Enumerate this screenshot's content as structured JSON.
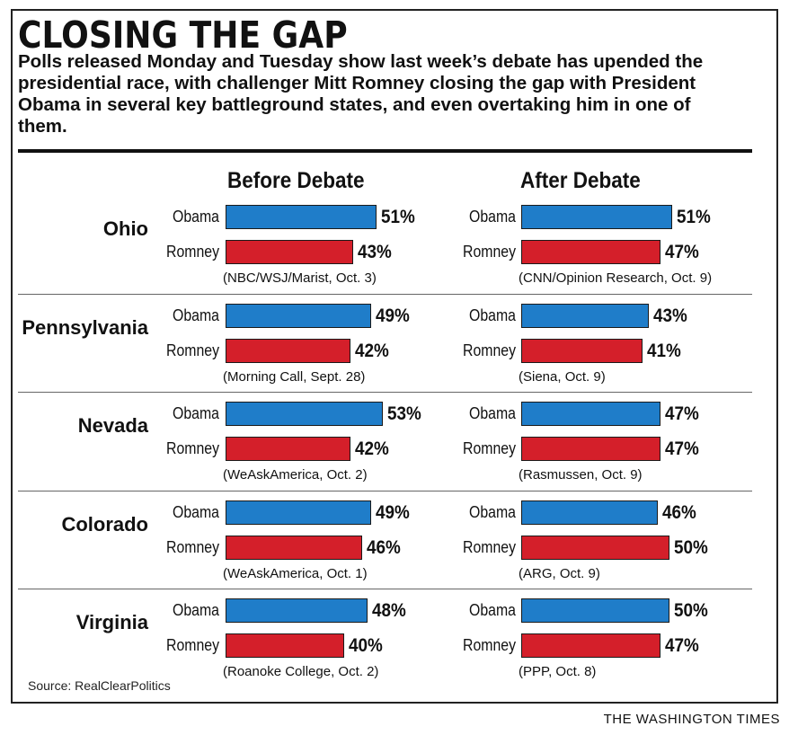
{
  "title": "CLOSING THE GAP",
  "subtitle": "Polls released Monday and Tuesday show last week’s debate has upended the presidential race, with challenger Mitt Romney closing the gap with President Obama in several key battleground states, and even overtaking him in one of them.",
  "source": "Source: RealClearPolitics",
  "credit": "THE WASHINGTON TIMES",
  "colors": {
    "obama": "#1f7dc9",
    "romney": "#d41f2a"
  },
  "chart_data": {
    "type": "bar",
    "orientation": "horizontal",
    "panels": [
      "Before Debate",
      "After Debate"
    ],
    "candidates": [
      "Obama",
      "Romney"
    ],
    "states": [
      {
        "name": "Ohio",
        "before": {
          "obama": 51,
          "romney": 43,
          "poll": "(NBC/WSJ/Marist, Oct. 3)"
        },
        "after": {
          "obama": 51,
          "romney": 47,
          "poll": "(CNN/Opinion Research, Oct. 9)"
        }
      },
      {
        "name": "Pennsylvania",
        "before": {
          "obama": 49,
          "romney": 42,
          "poll": "(Morning Call, Sept. 28)"
        },
        "after": {
          "obama": 43,
          "romney": 41,
          "poll": "(Siena, Oct. 9)"
        }
      },
      {
        "name": "Nevada",
        "before": {
          "obama": 53,
          "romney": 42,
          "poll": "(WeAskAmerica, Oct. 2)"
        },
        "after": {
          "obama": 47,
          "romney": 47,
          "poll": "(Rasmussen, Oct. 9)"
        }
      },
      {
        "name": "Colorado",
        "before": {
          "obama": 49,
          "romney": 46,
          "poll": "(WeAskAmerica, Oct. 1)"
        },
        "after": {
          "obama": 46,
          "romney": 50,
          "poll": "(ARG, Oct. 9)"
        }
      },
      {
        "name": "Virginia",
        "before": {
          "obama": 48,
          "romney": 40,
          "poll": "(Roanoke College, Oct. 2)"
        },
        "after": {
          "obama": 50,
          "romney": 47,
          "poll": "(PPP, Oct. 8)"
        }
      }
    ]
  }
}
